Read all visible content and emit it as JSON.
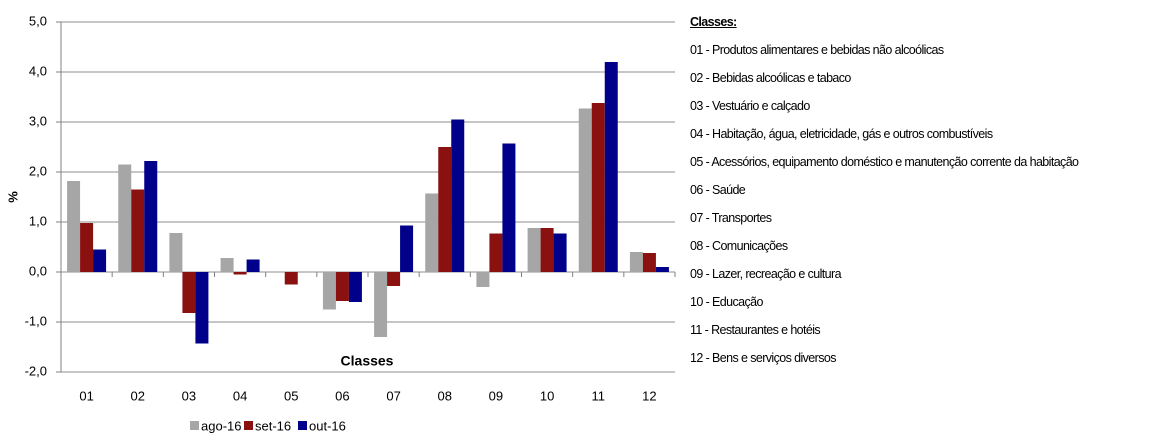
{
  "chart_data": {
    "type": "bar",
    "y_label": "%",
    "x_label": "Classes",
    "categories": [
      "01",
      "02",
      "03",
      "04",
      "05",
      "06",
      "07",
      "08",
      "09",
      "10",
      "11",
      "12"
    ],
    "series": [
      {
        "name": "ago-16",
        "color": "#a6a6a6",
        "values": [
          1.82,
          2.15,
          0.78,
          0.28,
          0,
          -0.75,
          -1.3,
          1.57,
          -0.3,
          0.88,
          3.27,
          0.4
        ]
      },
      {
        "name": "set-16",
        "color": "#8b1010",
        "values": [
          0.98,
          1.65,
          -0.82,
          -0.05,
          -0.25,
          -0.58,
          -0.28,
          2.5,
          0.77,
          0.88,
          3.38,
          0.38
        ]
      },
      {
        "name": "out-16",
        "color": "#00008b",
        "values": [
          0.45,
          2.22,
          -1.43,
          0.25,
          0,
          -0.6,
          0.93,
          3.05,
          2.57,
          0.77,
          4.2,
          0.1
        ]
      }
    ],
    "ylim": [
      -2,
      5
    ],
    "yticks": [
      {
        "value": -2,
        "label": "-2,0"
      },
      {
        "value": -1,
        "label": "-1,0"
      },
      {
        "value": 0,
        "label": "0,0"
      },
      {
        "value": 1,
        "label": "1,0"
      },
      {
        "value": 2,
        "label": "2,0"
      },
      {
        "value": 3,
        "label": "3,0"
      },
      {
        "value": 4,
        "label": "4,0"
      },
      {
        "value": 5,
        "label": "5,0"
      }
    ],
    "grid": true
  },
  "class_legend": {
    "title": "Classes:",
    "items": [
      "01 - Produtos alimentares e bebidas não alcoólicas",
      "02 - Bebidas alcoólicas e tabaco",
      "03 - Vestuário e calçado",
      "04 - Habitação, água, eletricidade, gás e outros combustíveis",
      "05 - Acessórios, equipamento doméstico e manutenção corrente da habitação",
      "06 - Saúde",
      "07 - Transportes",
      "08 - Comunicações",
      "09 - Lazer, recreação e cultura",
      "10 - Educação",
      "11 - Restaurantes e hotéis",
      "12 - Bens e serviços diversos"
    ]
  }
}
